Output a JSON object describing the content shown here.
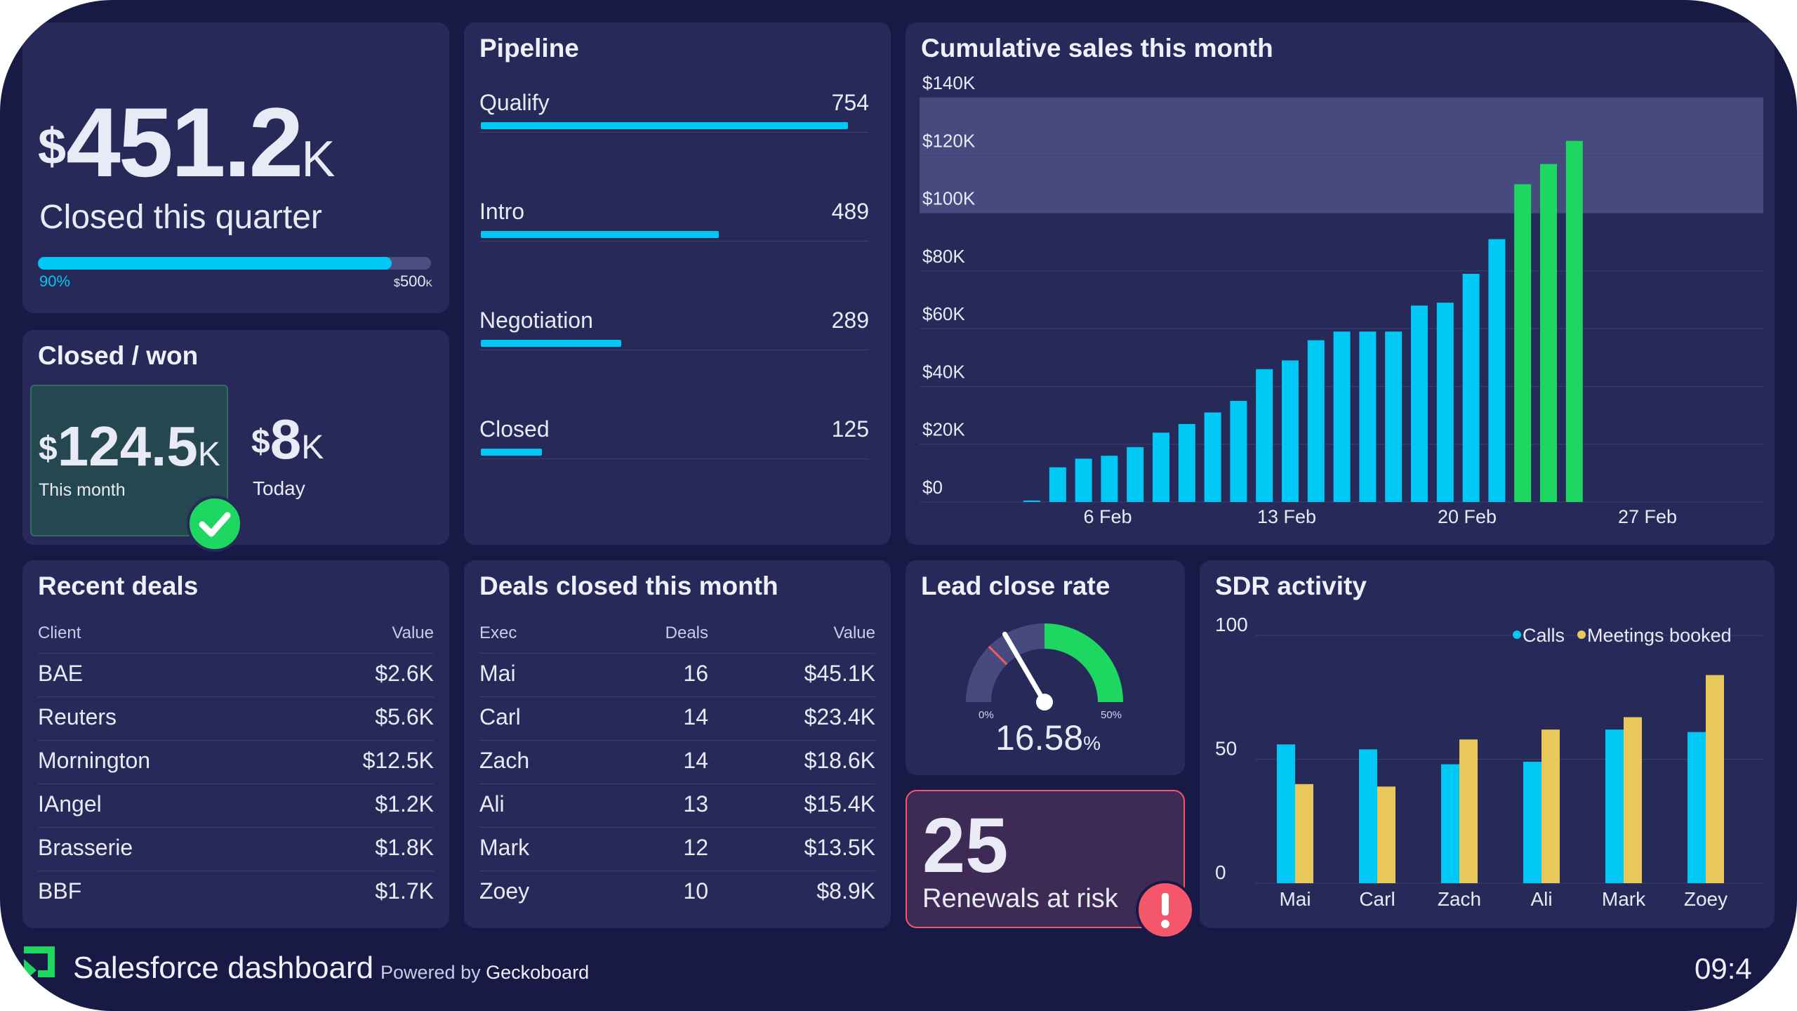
{
  "colors": {
    "background": "#181a45",
    "panel": "#272a58",
    "accent_blue": "#00c8f5",
    "accent_green": "#1ed760",
    "accent_yellow": "#e8c85a",
    "alert_red": "#f4566a"
  },
  "kpi": {
    "currency": "$",
    "value": "451.2",
    "suffix": "K",
    "label": "Closed this quarter",
    "progress_percent": 90,
    "progress_label": "90%",
    "target_currency": "$",
    "target": "500",
    "target_suffix": "K"
  },
  "closed_won": {
    "title": "Closed / won",
    "month": {
      "currency": "$",
      "value": "124.5",
      "suffix": "K",
      "label": "This month",
      "badge_icon": "check-icon"
    },
    "today": {
      "currency": "$",
      "value": "8",
      "suffix": "K",
      "label": "Today"
    }
  },
  "pipeline": {
    "title": "Pipeline",
    "stages": [
      {
        "label": "Qualify",
        "value": "754",
        "count": 754
      },
      {
        "label": "Intro",
        "value": "489",
        "count": 489
      },
      {
        "label": "Negotiation",
        "value": "289",
        "count": 289
      },
      {
        "label": "Closed",
        "value": "125",
        "count": 125
      }
    ]
  },
  "cumulative": {
    "title": "Cumulative sales this month"
  },
  "recent_deals": {
    "title": "Recent deals",
    "columns": [
      "Client",
      "Value"
    ],
    "rows": [
      [
        "BAE",
        "$2.6K"
      ],
      [
        "Reuters",
        "$5.6K"
      ],
      [
        "Mornington",
        "$12.5K"
      ],
      [
        "IAngel",
        "$1.2K"
      ],
      [
        "Brasserie",
        "$1.8K"
      ],
      [
        "BBF",
        "$1.7K"
      ]
    ]
  },
  "deals_closed": {
    "title": "Deals closed this month",
    "columns": [
      "Exec",
      "Deals",
      "Value"
    ],
    "rows": [
      [
        "Mai",
        "16",
        "$45.1K"
      ],
      [
        "Carl",
        "14",
        "$23.4K"
      ],
      [
        "Zach",
        "14",
        "$18.6K"
      ],
      [
        "Ali",
        "13",
        "$15.4K"
      ],
      [
        "Mark",
        "12",
        "$13.5K"
      ],
      [
        "Zoey",
        "10",
        "$8.9K"
      ]
    ]
  },
  "lead_close": {
    "title": "Lead close rate",
    "value": "16.58",
    "unit": "%",
    "min_label": "0%",
    "max_label": "50%",
    "rate": 16.58,
    "min": 0,
    "max": 50
  },
  "renewals": {
    "value": "25",
    "label": "Renewals at risk",
    "icon": "exclamation-icon"
  },
  "sdr": {
    "title": "SDR activity"
  },
  "footer": {
    "title": "Salesforce dashboard",
    "powered_prefix": "Powered by",
    "powered_brand": "Geckoboard",
    "time": "09:4",
    "logo_icon": "geckoboard-logo-icon"
  },
  "chart_data": [
    {
      "type": "bar",
      "title": "Cumulative sales this month",
      "ylim": [
        0,
        140000
      ],
      "yticks": [
        "$0",
        "$20K",
        "$40K",
        "$60K",
        "$80K",
        "$100K",
        "$120K",
        "$140K"
      ],
      "xticks": [
        "6 Feb",
        "13 Feb",
        "20 Feb",
        "27 Feb"
      ],
      "target_band": [
        100000,
        140000
      ],
      "series": [
        {
          "values": [
            500,
            12000,
            15000,
            16000,
            19000,
            24000,
            27000,
            31000,
            35000,
            46000,
            49000,
            56000,
            59000,
            59000,
            59000,
            68000,
            69000,
            79000,
            91000
          ],
          "color": "#00c8f5"
        },
        {
          "values": [
            110000,
            117000,
            125000
          ],
          "color": "#1ed760"
        }
      ]
    },
    {
      "type": "bar",
      "title": "SDR activity",
      "categories": [
        "Mai",
        "Carl",
        "Zach",
        "Ali",
        "Mark",
        "Zoey"
      ],
      "yticks": [
        "0",
        "50",
        "100"
      ],
      "ylim": [
        0,
        100
      ],
      "series": [
        {
          "name": "Calls",
          "values": [
            56,
            54,
            48,
            49,
            62,
            61
          ],
          "color": "#00c8f5"
        },
        {
          "name": "Meetings booked",
          "values": [
            40,
            39,
            58,
            62,
            67,
            84
          ],
          "color": "#e8c85a"
        }
      ]
    }
  ]
}
